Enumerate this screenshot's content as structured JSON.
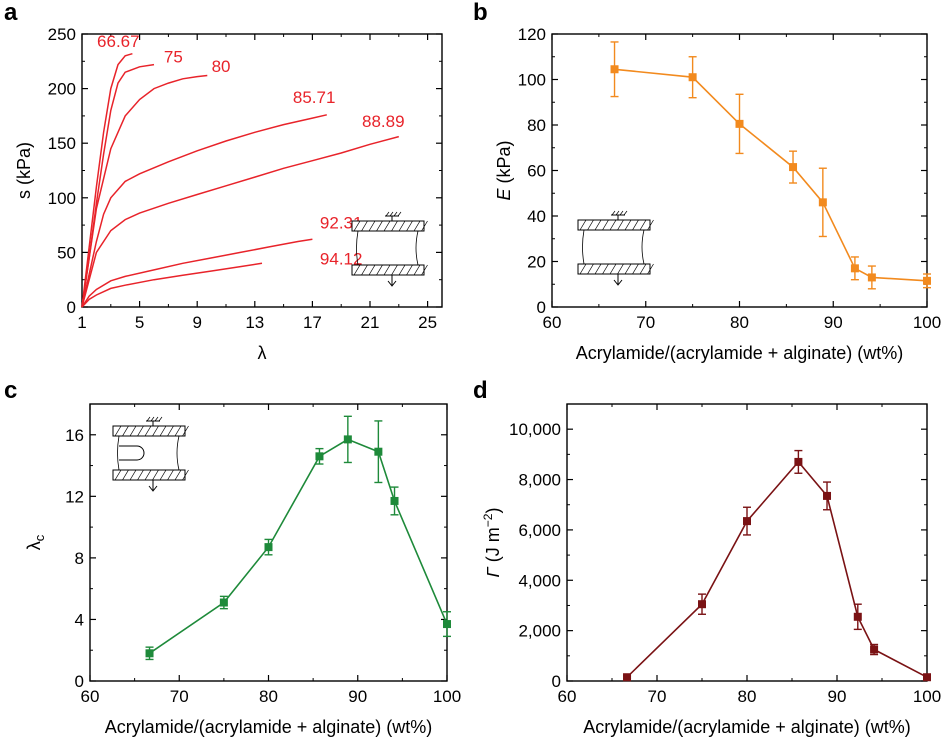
{
  "colors": {
    "panel_a": "#e8232a",
    "panel_b": "#f28a1e",
    "panel_c": "#1e8a3a",
    "panel_d": "#7a1214",
    "axis": "#000000"
  },
  "chart_data": [
    {
      "panel": "a",
      "type": "line",
      "xlabel": "λ",
      "ylabel": "s (kPa)",
      "xlim": [
        1,
        26
      ],
      "ylim": [
        0,
        250
      ],
      "xticks": [
        "1",
        "5",
        "9",
        "13",
        "17",
        "21",
        "25"
      ],
      "yticks": [
        "0",
        "50",
        "100",
        "150",
        "200",
        "250"
      ],
      "xtick_values": [
        1,
        5,
        9,
        13,
        17,
        21,
        25
      ],
      "ytick_values": [
        0,
        50,
        100,
        150,
        200,
        250
      ],
      "has_inset": true,
      "series": [
        {
          "name": "66.67",
          "x": [
            1,
            1.5,
            2,
            2.5,
            3,
            3.5,
            4,
            4.5
          ],
          "y": [
            0,
            55,
            110,
            160,
            200,
            222,
            230,
            232
          ]
        },
        {
          "name": "75",
          "x": [
            1,
            1.5,
            2,
            2.5,
            3,
            3.5,
            4,
            5,
            6
          ],
          "y": [
            0,
            45,
            95,
            140,
            180,
            205,
            215,
            220,
            222
          ]
        },
        {
          "name": "80",
          "x": [
            1,
            1.5,
            2,
            3,
            4,
            5,
            6,
            7,
            8,
            9,
            9.7
          ],
          "y": [
            0,
            45,
            90,
            145,
            175,
            190,
            200,
            205,
            209,
            211,
            212
          ]
        },
        {
          "name": "85.71",
          "x": [
            1,
            1.5,
            2,
            2.5,
            3,
            4,
            5,
            7,
            9,
            11,
            13,
            15,
            17,
            18
          ],
          "y": [
            0,
            30,
            60,
            85,
            100,
            115,
            122,
            133,
            143,
            152,
            160,
            167,
            173,
            176
          ]
        },
        {
          "name": "88.89",
          "x": [
            1,
            1.5,
            2,
            3,
            4,
            5,
            7,
            9,
            11,
            13,
            15,
            17,
            19,
            21,
            23
          ],
          "y": [
            0,
            25,
            50,
            70,
            80,
            86,
            95,
            103,
            111,
            119,
            127,
            134,
            141,
            149,
            156
          ]
        },
        {
          "name": "92.31",
          "x": [
            1,
            1.5,
            2,
            3,
            4,
            6,
            8,
            10,
            12,
            14,
            16,
            17
          ],
          "y": [
            0,
            10,
            16,
            24,
            28,
            34,
            40,
            45,
            50,
            55,
            60,
            62
          ]
        },
        {
          "name": "94.12",
          "x": [
            1,
            1.5,
            2,
            3,
            4,
            6,
            8,
            10,
            12,
            13.5
          ],
          "y": [
            0,
            7,
            11,
            17,
            20,
            25,
            29,
            33,
            37,
            40
          ]
        }
      ]
    },
    {
      "panel": "b",
      "type": "line",
      "xlabel": "Acrylamide/(acrylamide + alginate) (wt%)",
      "ylabel": "E (kPa)",
      "ylabel_symbol": "E",
      "ylabel_unit": " (kPa)",
      "xlim": [
        60,
        100
      ],
      "ylim": [
        0,
        120
      ],
      "xticks": [
        "60",
        "70",
        "80",
        "90",
        "100"
      ],
      "yticks": [
        "0",
        "20",
        "40",
        "60",
        "80",
        "100",
        "120"
      ],
      "xtick_values": [
        60,
        70,
        80,
        90,
        100
      ],
      "ytick_values": [
        0,
        20,
        40,
        60,
        80,
        100,
        120
      ],
      "has_inset": true,
      "x": [
        66.67,
        75,
        80,
        85.71,
        88.89,
        92.31,
        94.12,
        100
      ],
      "y": [
        104.5,
        101,
        80.5,
        61.5,
        46,
        17,
        13,
        11.5
      ],
      "err": [
        12,
        9,
        13,
        7,
        15,
        5,
        5,
        3
      ]
    },
    {
      "panel": "c",
      "type": "line",
      "xlabel": "Acrylamide/(acrylamide + alginate) (wt%)",
      "ylabel": "λc",
      "ylabel_symbol": "λ",
      "ylabel_sub": "c",
      "xlim": [
        60,
        100
      ],
      "ylim": [
        0,
        18
      ],
      "xticks": [
        "60",
        "70",
        "80",
        "90",
        "100"
      ],
      "yticks": [
        "0",
        "4",
        "8",
        "12",
        "16"
      ],
      "xtick_values": [
        60,
        70,
        80,
        90,
        100
      ],
      "ytick_values": [
        0,
        4,
        8,
        12,
        16
      ],
      "has_inset": true,
      "x": [
        66.67,
        75,
        80,
        85.71,
        88.89,
        92.31,
        94.12,
        100
      ],
      "y": [
        1.8,
        5.1,
        8.7,
        14.6,
        15.7,
        14.9,
        11.7,
        3.7
      ],
      "err": [
        0.4,
        0.4,
        0.5,
        0.5,
        1.5,
        2.0,
        0.9,
        0.8
      ]
    },
    {
      "panel": "d",
      "type": "line",
      "xlabel": "Acrylamide/(acrylamide + alginate) (wt%)",
      "ylabel": "Γ (J m−2)",
      "ylabel_symbol": "Γ",
      "ylabel_unit": " (J m",
      "ylabel_sup": "−2",
      "ylabel_close": ")",
      "xlim": [
        60,
        100
      ],
      "ylim": [
        0,
        11000
      ],
      "xticks": [
        "60",
        "70",
        "80",
        "90",
        "100"
      ],
      "yticks": [
        "0",
        "2,000",
        "4,000",
        "6,000",
        "8,000",
        "10,000"
      ],
      "xtick_values": [
        60,
        70,
        80,
        90,
        100
      ],
      "ytick_values": [
        0,
        2000,
        4000,
        6000,
        8000,
        10000
      ],
      "has_inset": false,
      "x": [
        66.67,
        75,
        80,
        85.71,
        88.89,
        92.31,
        94.12,
        100
      ],
      "y": [
        150,
        3050,
        6350,
        8700,
        7350,
        2550,
        1250,
        150
      ],
      "err": [
        50,
        400,
        550,
        450,
        550,
        500,
        200,
        50
      ]
    }
  ]
}
